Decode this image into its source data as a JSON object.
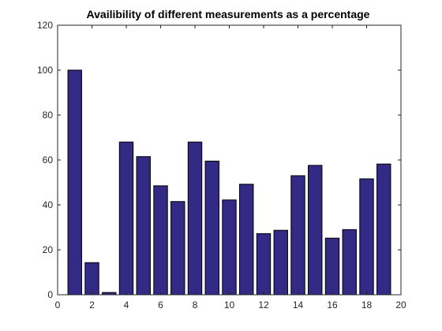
{
  "chart_data": {
    "type": "bar",
    "title": "Availibility of different measurements as a percentage",
    "xlabel": "",
    "ylabel": "",
    "x": [
      1,
      2,
      3,
      4,
      5,
      6,
      7,
      8,
      9,
      10,
      11,
      12,
      13,
      14,
      15,
      16,
      17,
      18,
      19
    ],
    "values": [
      100,
      14.3,
      1,
      68,
      61.5,
      48.5,
      41.5,
      68,
      59.5,
      42.2,
      49.2,
      27.2,
      28.7,
      53,
      57.6,
      25.2,
      29,
      51.6,
      58.2
    ],
    "xlim": [
      0,
      20
    ],
    "ylim": [
      0,
      120
    ],
    "xticks": [
      "0",
      "2",
      "4",
      "6",
      "8",
      "10",
      "12",
      "14",
      "16",
      "18",
      "20"
    ],
    "yticks": [
      "0",
      "20",
      "40",
      "60",
      "80",
      "100",
      "120"
    ],
    "bar_color": "#332a85",
    "bar_edge_color": "#000000",
    "grid": false,
    "legend": "none"
  }
}
